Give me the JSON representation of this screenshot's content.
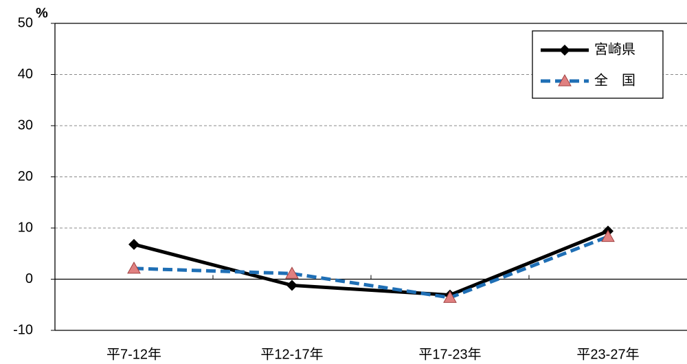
{
  "chart_data": {
    "type": "line",
    "y_unit": "%",
    "categories": [
      "平7-12年",
      "平12-17年",
      "平17-23年",
      "平23-27年"
    ],
    "series": [
      {
        "name": "宮崎県",
        "color": "#000000",
        "marker": "diamond",
        "dash": "solid",
        "values": [
          6.8,
          -1.2,
          -3.1,
          9.4
        ]
      },
      {
        "name": "全　国",
        "color": "#1f6fb5",
        "marker": "triangle",
        "marker_color": "#e08080",
        "dash": "dashed",
        "values": [
          2.1,
          1.1,
          -3.6,
          8.3
        ]
      }
    ],
    "ylim": [
      -10,
      50
    ],
    "yticks": [
      -10,
      0,
      10,
      20,
      30,
      40,
      50
    ],
    "grid": true,
    "legend": "upper right"
  }
}
